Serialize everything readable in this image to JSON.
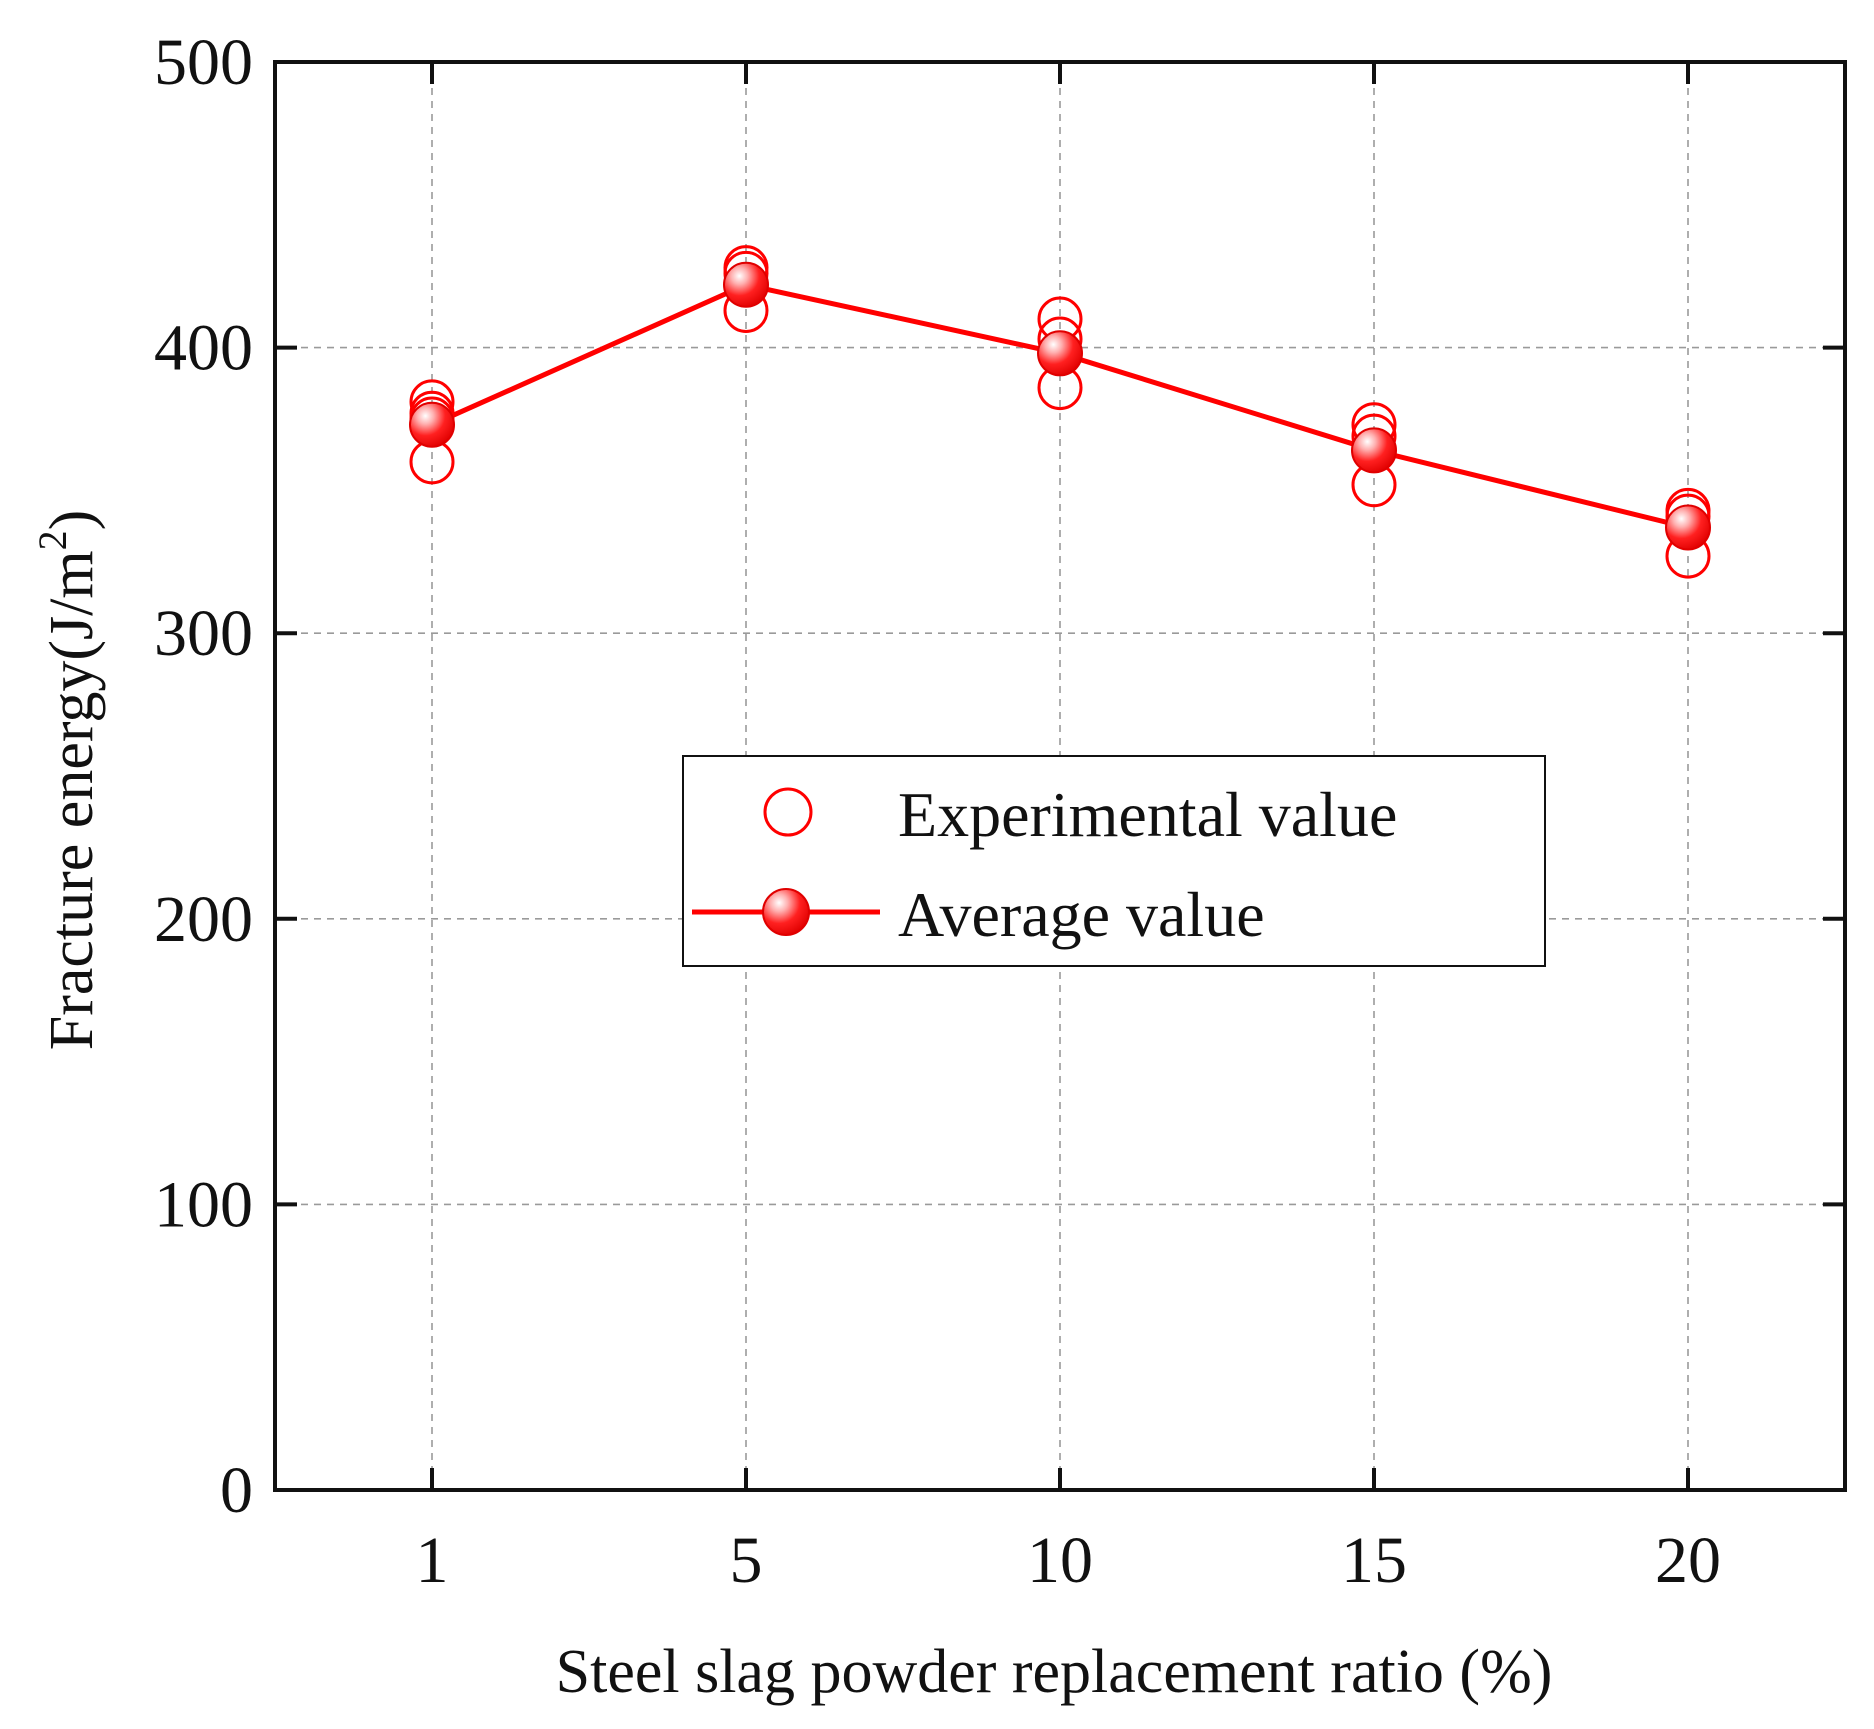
{
  "chart_data": {
    "type": "line",
    "title": "",
    "xlabel": "Steel slag powder replacement ratio (%)",
    "ylabel_main": "Fracture energy(J/m",
    "ylabel_sup": "2",
    "ylabel_close": ")",
    "categories": [
      "1",
      "5",
      "10",
      "15",
      "20"
    ],
    "x": [
      1,
      5,
      10,
      15,
      20
    ],
    "ylim": [
      0,
      500
    ],
    "yticks": [
      "0",
      "100",
      "200",
      "300",
      "400",
      "500"
    ],
    "ytick_values": [
      0,
      100,
      200,
      300,
      400,
      500
    ],
    "grid": true,
    "legend_position": "center",
    "series": [
      {
        "name": "Experimental value",
        "kind": "scatter-hollow",
        "color": "#ff0000",
        "points": [
          {
            "category": "1",
            "values": [
              381,
              377,
              375,
              360
            ]
          },
          {
            "category": "5",
            "values": [
              428,
              426,
              422,
              413
            ]
          },
          {
            "category": "10",
            "values": [
              410,
              403,
              398,
              386
            ]
          },
          {
            "category": "15",
            "values": [
              373,
              369,
              364,
              352
            ]
          },
          {
            "category": "20",
            "values": [
              343,
              341,
              337,
              327
            ]
          }
        ]
      },
      {
        "name": "Average value",
        "kind": "line-marker",
        "color": "#ff0000",
        "values": [
          373,
          422,
          398,
          364,
          337
        ]
      }
    ]
  }
}
